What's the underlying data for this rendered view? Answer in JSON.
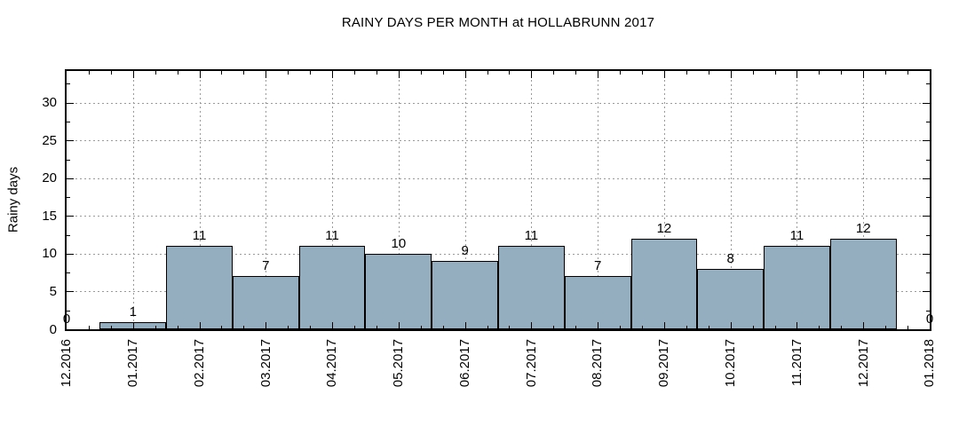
{
  "chart_data": {
    "type": "bar",
    "title": "RAINY DAYS PER MONTH at HOLLABRUNN 2017",
    "ylabel": "Rainy days",
    "xlabel": "",
    "categories": [
      "12.2016",
      "01.2017",
      "02.2017",
      "03.2017",
      "04.2017",
      "05.2017",
      "06.2017",
      "07.2017",
      "08.2017",
      "09.2017",
      "10.2017",
      "11.2017",
      "12.2017",
      "01.2018"
    ],
    "values": [
      0,
      1,
      11,
      7,
      11,
      10,
      9,
      11,
      7,
      12,
      8,
      11,
      12,
      0
    ],
    "bar_labels": [
      "0",
      "1",
      "11",
      "7",
      "11",
      "10",
      "9",
      "11",
      "7",
      "12",
      "8",
      "11",
      "12",
      "0"
    ],
    "yticks": [
      0,
      5,
      10,
      15,
      20,
      25,
      30
    ],
    "ylim": [
      0,
      34.2
    ],
    "y_minor_step": 2.5,
    "x_minor_ticks_per_interval": 2,
    "grid": true,
    "legend": "none",
    "colors": {
      "background": "#FFFFFF",
      "bar_fill": "#94AEBF",
      "bar_border": "#000000",
      "grid": "#9A9A9A",
      "axis": "#000000",
      "text": "#000000"
    }
  }
}
